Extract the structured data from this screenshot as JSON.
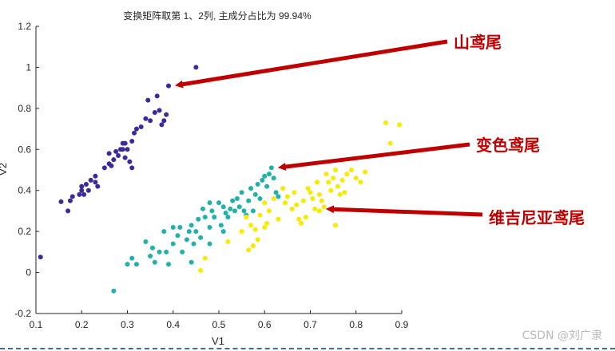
{
  "chart_data": {
    "type": "scatter",
    "title": "变换矩阵取第 1、2列, 主成分占比为  99.94%",
    "xlabel": "V1",
    "ylabel": "V2",
    "xlim": [
      0.1,
      0.9
    ],
    "ylim": [
      -0.2,
      1.2
    ],
    "xticks": [
      "0.1",
      "0.2",
      "0.3",
      "0.4",
      "0.5",
      "0.6",
      "0.7",
      "0.8",
      "0.9"
    ],
    "yticks": [
      "-0.2",
      "0",
      "0.2",
      "0.4",
      "0.6",
      "0.8",
      "1",
      "1.2"
    ],
    "grid": false,
    "series": [
      {
        "color": "#3b2a9b",
        "points": [
          [
            0.11,
            0.075
          ],
          [
            0.155,
            0.345
          ],
          [
            0.17,
            0.3
          ],
          [
            0.18,
            0.37
          ],
          [
            0.175,
            0.35
          ],
          [
            0.195,
            0.38
          ],
          [
            0.2,
            0.4
          ],
          [
            0.2,
            0.42
          ],
          [
            0.205,
            0.38
          ],
          [
            0.21,
            0.43
          ],
          [
            0.215,
            0.4
          ],
          [
            0.22,
            0.45
          ],
          [
            0.23,
            0.44
          ],
          [
            0.23,
            0.47
          ],
          [
            0.235,
            0.42
          ],
          [
            0.25,
            0.51
          ],
          [
            0.26,
            0.53
          ],
          [
            0.26,
            0.58
          ],
          [
            0.265,
            0.52
          ],
          [
            0.27,
            0.55
          ],
          [
            0.275,
            0.59
          ],
          [
            0.28,
            0.57
          ],
          [
            0.285,
            0.6
          ],
          [
            0.29,
            0.6
          ],
          [
            0.29,
            0.63
          ],
          [
            0.295,
            0.56
          ],
          [
            0.295,
            0.63
          ],
          [
            0.3,
            0.6
          ],
          [
            0.305,
            0.54
          ],
          [
            0.31,
            0.51
          ],
          [
            0.31,
            0.64
          ],
          [
            0.315,
            0.68
          ],
          [
            0.32,
            0.7
          ],
          [
            0.33,
            0.71
          ],
          [
            0.34,
            0.75
          ],
          [
            0.345,
            0.84
          ],
          [
            0.35,
            0.74
          ],
          [
            0.36,
            0.78
          ],
          [
            0.365,
            0.86
          ],
          [
            0.37,
            0.79
          ],
          [
            0.375,
            0.72
          ],
          [
            0.38,
            0.74
          ],
          [
            0.385,
            0.77
          ],
          [
            0.39,
            0.91
          ],
          [
            0.45,
            1.0
          ]
        ]
      },
      {
        "color": "#20b2aa",
        "points": [
          [
            0.27,
            -0.09
          ],
          [
            0.3,
            0.04
          ],
          [
            0.31,
            0.07
          ],
          [
            0.32,
            0.04
          ],
          [
            0.34,
            0.15
          ],
          [
            0.35,
            0.08
          ],
          [
            0.355,
            0.12
          ],
          [
            0.36,
            0.05
          ],
          [
            0.37,
            0.1
          ],
          [
            0.38,
            0.2
          ],
          [
            0.385,
            0.1
          ],
          [
            0.39,
            0.04
          ],
          [
            0.4,
            0.14
          ],
          [
            0.41,
            0.18
          ],
          [
            0.415,
            0.22
          ],
          [
            0.42,
            0.1
          ],
          [
            0.43,
            0.16
          ],
          [
            0.435,
            0.2
          ],
          [
            0.44,
            0.23
          ],
          [
            0.445,
            0.14
          ],
          [
            0.45,
            0.2
          ],
          [
            0.455,
            0.26
          ],
          [
            0.46,
            0.17
          ],
          [
            0.465,
            0.31
          ],
          [
            0.47,
            0.27
          ],
          [
            0.48,
            0.34
          ],
          [
            0.48,
            0.22
          ],
          [
            0.485,
            0.3
          ],
          [
            0.49,
            0.27
          ],
          [
            0.5,
            0.34
          ],
          [
            0.505,
            0.23
          ],
          [
            0.51,
            0.32
          ],
          [
            0.515,
            0.29
          ],
          [
            0.52,
            0.27
          ],
          [
            0.525,
            0.31
          ],
          [
            0.53,
            0.35
          ],
          [
            0.535,
            0.3
          ],
          [
            0.54,
            0.36
          ],
          [
            0.545,
            0.32
          ],
          [
            0.55,
            0.39
          ],
          [
            0.555,
            0.3
          ],
          [
            0.56,
            0.28
          ],
          [
            0.565,
            0.35
          ],
          [
            0.57,
            0.41
          ],
          [
            0.575,
            0.3
          ],
          [
            0.58,
            0.38
          ],
          [
            0.585,
            0.43
          ],
          [
            0.59,
            0.36
          ],
          [
            0.595,
            0.45
          ],
          [
            0.6,
            0.47
          ],
          [
            0.605,
            0.42
          ],
          [
            0.61,
            0.48
          ],
          [
            0.615,
            0.51
          ],
          [
            0.62,
            0.46
          ],
          [
            0.625,
            0.39
          ],
          [
            0.63,
            0.37
          ],
          [
            0.48,
            0.14
          ],
          [
            0.51,
            0.2
          ],
          [
            0.44,
            0.05
          ],
          [
            0.4,
            0.22
          ]
        ]
      },
      {
        "color": "#f8ea00",
        "points": [
          [
            0.46,
            0.01
          ],
          [
            0.47,
            0.07
          ],
          [
            0.52,
            0.15
          ],
          [
            0.56,
            0.27
          ],
          [
            0.565,
            0.11
          ],
          [
            0.575,
            0.13
          ],
          [
            0.58,
            0.21
          ],
          [
            0.585,
            0.16
          ],
          [
            0.59,
            0.28
          ],
          [
            0.6,
            0.34
          ],
          [
            0.605,
            0.24
          ],
          [
            0.61,
            0.3
          ],
          [
            0.62,
            0.36
          ],
          [
            0.63,
            0.26
          ],
          [
            0.64,
            0.41
          ],
          [
            0.645,
            0.34
          ],
          [
            0.65,
            0.37
          ],
          [
            0.66,
            0.31
          ],
          [
            0.665,
            0.39
          ],
          [
            0.675,
            0.26
          ],
          [
            0.68,
            0.24
          ],
          [
            0.685,
            0.35
          ],
          [
            0.69,
            0.27
          ],
          [
            0.695,
            0.41
          ],
          [
            0.7,
            0.39
          ],
          [
            0.705,
            0.36
          ],
          [
            0.71,
            0.31
          ],
          [
            0.715,
            0.44
          ],
          [
            0.72,
            0.38
          ],
          [
            0.725,
            0.35
          ],
          [
            0.73,
            0.32
          ],
          [
            0.735,
            0.48
          ],
          [
            0.74,
            0.44
          ],
          [
            0.745,
            0.4
          ],
          [
            0.75,
            0.46
          ],
          [
            0.755,
            0.5
          ],
          [
            0.76,
            0.42
          ],
          [
            0.765,
            0.38
          ],
          [
            0.77,
            0.45
          ],
          [
            0.775,
            0.39
          ],
          [
            0.78,
            0.48
          ],
          [
            0.79,
            0.5
          ],
          [
            0.8,
            0.46
          ],
          [
            0.81,
            0.44
          ],
          [
            0.82,
            0.49
          ],
          [
            0.755,
            0.23
          ],
          [
            0.865,
            0.73
          ],
          [
            0.875,
            0.63
          ],
          [
            0.895,
            0.72
          ],
          [
            0.72,
            0.3
          ],
          [
            0.57,
            0.23
          ],
          [
            0.6,
            0.22
          ],
          [
            0.55,
            0.2
          ],
          [
            0.67,
            0.33
          ]
        ]
      }
    ],
    "annotations": [
      {
        "text": "山鸢尾",
        "color": "#c00000",
        "target": [
          0.39,
          0.91
        ]
      },
      {
        "text": "变色鸢尾",
        "color": "#c00000",
        "target": [
          0.615,
          0.51
        ]
      },
      {
        "text": "维吉尼亚鸢尾",
        "color": "#c00000",
        "target": [
          0.72,
          0.31
        ]
      }
    ]
  },
  "watermark": "CSDN @刘广隶"
}
